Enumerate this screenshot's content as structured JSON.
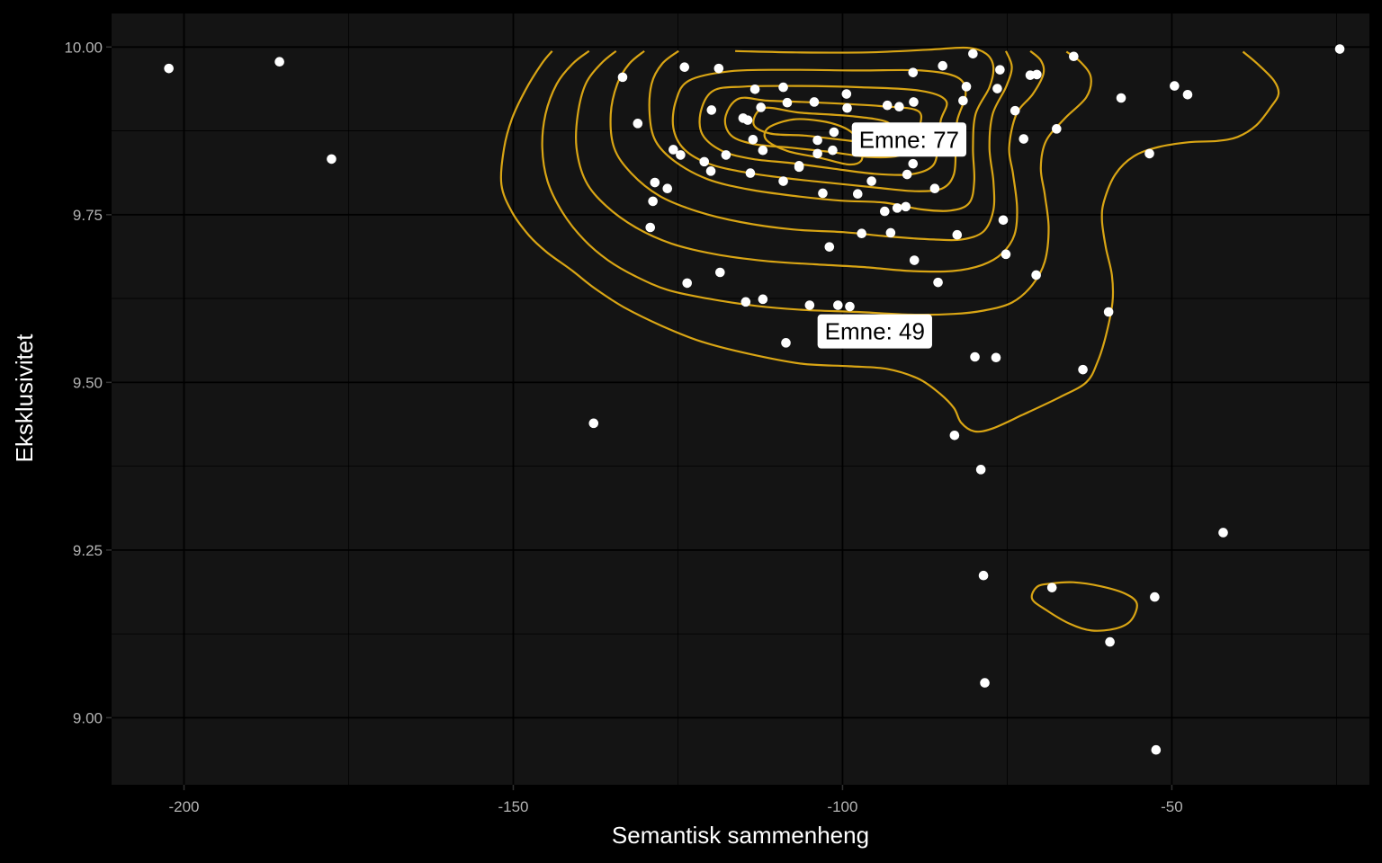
{
  "chart_data": {
    "type": "scatter",
    "xlabel": "Semantisk sammenheng",
    "ylabel": "Eksklusivitet",
    "xlim": [
      -211,
      -20
    ],
    "ylim": [
      8.9,
      10.05
    ],
    "x_ticks": [
      -200,
      -150,
      -100,
      -50
    ],
    "x_tick_labels": [
      "-200",
      "-150",
      "-100",
      "-50"
    ],
    "y_ticks": [
      9.0,
      9.25,
      9.5,
      9.75,
      10.0
    ],
    "y_tick_labels": [
      "9.00",
      "9.25",
      "9.50",
      "9.75",
      "10.00"
    ],
    "grid": true,
    "colors": {
      "background": "#000000",
      "panel": "#141414",
      "grid": "#000000",
      "points": "#ffffff",
      "contours": "#d9a514"
    },
    "points": [
      {
        "x": -202.3,
        "y": 9.968
      },
      {
        "x": -185.5,
        "y": 9.978
      },
      {
        "x": -177.6,
        "y": 9.833
      },
      {
        "x": -137.8,
        "y": 9.439
      },
      {
        "x": -133.4,
        "y": 9.955
      },
      {
        "x": -131.1,
        "y": 9.886
      },
      {
        "x": -129.2,
        "y": 9.731
      },
      {
        "x": -128.8,
        "y": 9.77
      },
      {
        "x": -128.5,
        "y": 9.798
      },
      {
        "x": -126.6,
        "y": 9.789
      },
      {
        "x": -125.7,
        "y": 9.847
      },
      {
        "x": -124.6,
        "y": 9.839
      },
      {
        "x": -124.0,
        "y": 9.97
      },
      {
        "x": -123.6,
        "y": 9.648
      },
      {
        "x": -121.0,
        "y": 9.829
      },
      {
        "x": -120.0,
        "y": 9.815
      },
      {
        "x": -119.9,
        "y": 9.906
      },
      {
        "x": -118.8,
        "y": 9.968
      },
      {
        "x": -118.6,
        "y": 9.664
      },
      {
        "x": -117.7,
        "y": 9.839
      },
      {
        "x": -115.1,
        "y": 9.894
      },
      {
        "x": -114.7,
        "y": 9.62
      },
      {
        "x": -114.4,
        "y": 9.891
      },
      {
        "x": -114.0,
        "y": 9.812
      },
      {
        "x": -113.6,
        "y": 9.862
      },
      {
        "x": -113.3,
        "y": 9.937
      },
      {
        "x": -112.4,
        "y": 9.91
      },
      {
        "x": -112.1,
        "y": 9.624
      },
      {
        "x": -112.1,
        "y": 9.846
      },
      {
        "x": -109.0,
        "y": 9.94
      },
      {
        "x": -109.0,
        "y": 9.8
      },
      {
        "x": -108.6,
        "y": 9.559
      },
      {
        "x": -108.4,
        "y": 9.917
      },
      {
        "x": -106.6,
        "y": 9.823
      },
      {
        "x": -106.6,
        "y": 9.821
      },
      {
        "x": -105.0,
        "y": 9.615
      },
      {
        "x": -104.3,
        "y": 9.918
      },
      {
        "x": -103.8,
        "y": 9.861
      },
      {
        "x": -103.8,
        "y": 9.841
      },
      {
        "x": -103.0,
        "y": 9.782
      },
      {
        "x": -102.0,
        "y": 9.702
      },
      {
        "x": -101.5,
        "y": 9.846
      },
      {
        "x": -101.3,
        "y": 9.873
      },
      {
        "x": -100.7,
        "y": 9.615
      },
      {
        "x": -99.4,
        "y": 9.93
      },
      {
        "x": -99.3,
        "y": 9.909
      },
      {
        "x": -98.9,
        "y": 9.613
      },
      {
        "x": -97.7,
        "y": 9.781
      },
      {
        "x": -97.1,
        "y": 9.722
      },
      {
        "x": -95.6,
        "y": 9.8
      },
      {
        "x": -93.6,
        "y": 9.755
      },
      {
        "x": -93.2,
        "y": 9.913
      },
      {
        "x": -92.7,
        "y": 9.723
      },
      {
        "x": -91.7,
        "y": 9.76
      },
      {
        "x": -91.4,
        "y": 9.911
      },
      {
        "x": -90.4,
        "y": 9.762
      },
      {
        "x": -90.2,
        "y": 9.81
      },
      {
        "x": -89.3,
        "y": 9.826
      },
      {
        "x": -89.3,
        "y": 9.962
      },
      {
        "x": -89.2,
        "y": 9.918
      },
      {
        "x": -89.1,
        "y": 9.682
      },
      {
        "x": -86.0,
        "y": 9.789
      },
      {
        "x": -85.5,
        "y": 9.649
      },
      {
        "x": -84.8,
        "y": 9.972
      },
      {
        "x": -83.0,
        "y": 9.421
      },
      {
        "x": -82.6,
        "y": 9.72
      },
      {
        "x": -81.7,
        "y": 9.92
      },
      {
        "x": -81.2,
        "y": 9.941
      },
      {
        "x": -80.2,
        "y": 9.99
      },
      {
        "x": -79.9,
        "y": 9.538
      },
      {
        "x": -79.0,
        "y": 9.37
      },
      {
        "x": -78.6,
        "y": 9.212
      },
      {
        "x": -78.4,
        "y": 9.052
      },
      {
        "x": -76.7,
        "y": 9.537
      },
      {
        "x": -76.5,
        "y": 9.938
      },
      {
        "x": -76.1,
        "y": 9.966
      },
      {
        "x": -75.6,
        "y": 9.742
      },
      {
        "x": -75.2,
        "y": 9.691
      },
      {
        "x": -73.8,
        "y": 9.905
      },
      {
        "x": -72.5,
        "y": 9.863
      },
      {
        "x": -71.5,
        "y": 9.958
      },
      {
        "x": -70.5,
        "y": 9.959
      },
      {
        "x": -70.6,
        "y": 9.66
      },
      {
        "x": -68.2,
        "y": 9.194
      },
      {
        "x": -67.5,
        "y": 9.878
      },
      {
        "x": -64.9,
        "y": 9.986
      },
      {
        "x": -63.5,
        "y": 9.519
      },
      {
        "x": -59.6,
        "y": 9.605
      },
      {
        "x": -59.4,
        "y": 9.113
      },
      {
        "x": -57.7,
        "y": 9.924
      },
      {
        "x": -53.4,
        "y": 9.841
      },
      {
        "x": -52.6,
        "y": 9.18
      },
      {
        "x": -52.4,
        "y": 8.952
      },
      {
        "x": -49.6,
        "y": 9.942
      },
      {
        "x": -47.6,
        "y": 9.929
      },
      {
        "x": -42.2,
        "y": 9.276
      },
      {
        "x": -24.5,
        "y": 9.997
      }
    ],
    "annotations": [
      {
        "label": "Emne: 77",
        "x": -89.9,
        "y": 9.862
      },
      {
        "label": "Emne: 49",
        "x": -95.1,
        "y": 9.576
      }
    ],
    "contour_levels": [
      [
        [
          -144.1,
          9.994
        ],
        [
          -145.7,
          9.975
        ],
        [
          -148.2,
          9.935
        ],
        [
          -150.2,
          9.893
        ],
        [
          -151.4,
          9.849
        ],
        [
          -151.8,
          9.795
        ],
        [
          -150.2,
          9.754
        ],
        [
          -147.6,
          9.719
        ],
        [
          -144.9,
          9.694
        ],
        [
          -141.1,
          9.667
        ],
        [
          -137.6,
          9.64
        ],
        [
          -133.2,
          9.612
        ],
        [
          -127.4,
          9.584
        ],
        [
          -121.5,
          9.561
        ],
        [
          -114.4,
          9.543
        ],
        [
          -106.3,
          9.528
        ],
        [
          -99.0,
          9.524
        ],
        [
          -93.2,
          9.52
        ],
        [
          -88.4,
          9.505
        ],
        [
          -85.2,
          9.483
        ],
        [
          -83.1,
          9.462
        ],
        [
          -82.0,
          9.44
        ],
        [
          -80.0,
          9.427
        ],
        [
          -77.3,
          9.431
        ],
        [
          -72.8,
          9.451
        ],
        [
          -67.0,
          9.478
        ],
        [
          -63.0,
          9.5
        ],
        [
          -61.3,
          9.53
        ],
        [
          -60.0,
          9.57
        ],
        [
          -59.0,
          9.62
        ],
        [
          -59.1,
          9.66
        ],
        [
          -60.0,
          9.7
        ],
        [
          -60.6,
          9.741
        ],
        [
          -60.3,
          9.77
        ],
        [
          -58.6,
          9.81
        ],
        [
          -55.8,
          9.837
        ],
        [
          -52.0,
          9.851
        ],
        [
          -47.4,
          9.858
        ],
        [
          -43.1,
          9.86
        ],
        [
          -40.0,
          9.866
        ],
        [
          -37.2,
          9.883
        ],
        [
          -35.0,
          9.91
        ],
        [
          -33.8,
          9.93
        ],
        [
          -34.5,
          9.95
        ],
        [
          -37.0,
          9.975
        ],
        [
          -39.2,
          9.993
        ]
      ],
      [
        [
          -138.5,
          9.994
        ],
        [
          -141.0,
          9.975
        ],
        [
          -143.4,
          9.945
        ],
        [
          -145.1,
          9.9
        ],
        [
          -145.6,
          9.85
        ],
        [
          -144.8,
          9.8
        ],
        [
          -142.5,
          9.753
        ],
        [
          -139.3,
          9.713
        ],
        [
          -135.6,
          9.682
        ],
        [
          -131.4,
          9.658
        ],
        [
          -126.6,
          9.638
        ],
        [
          -120.5,
          9.625
        ],
        [
          -113.1,
          9.614
        ],
        [
          -105.8,
          9.608
        ],
        [
          -97.7,
          9.605
        ],
        [
          -89.6,
          9.601
        ],
        [
          -83.1,
          9.602
        ],
        [
          -78.6,
          9.607
        ],
        [
          -74.3,
          9.619
        ],
        [
          -71.2,
          9.645
        ],
        [
          -69.3,
          9.68
        ],
        [
          -68.7,
          9.73
        ],
        [
          -69.3,
          9.78
        ],
        [
          -69.9,
          9.82
        ],
        [
          -69.1,
          9.86
        ],
        [
          -66.2,
          9.894
        ],
        [
          -63.0,
          9.925
        ],
        [
          -62.3,
          9.955
        ],
        [
          -63.9,
          9.978
        ],
        [
          -66.0,
          9.993
        ]
      ],
      [
        [
          -134.4,
          9.994
        ],
        [
          -136.7,
          9.975
        ],
        [
          -139.0,
          9.945
        ],
        [
          -140.2,
          9.9
        ],
        [
          -140.4,
          9.85
        ],
        [
          -139.0,
          9.8
        ],
        [
          -135.9,
          9.763
        ],
        [
          -131.4,
          9.731
        ],
        [
          -126.0,
          9.707
        ],
        [
          -119.3,
          9.691
        ],
        [
          -111.7,
          9.681
        ],
        [
          -104.2,
          9.676
        ],
        [
          -96.9,
          9.672
        ],
        [
          -89.5,
          9.666
        ],
        [
          -83.3,
          9.666
        ],
        [
          -78.8,
          9.675
        ],
        [
          -75.8,
          9.692
        ],
        [
          -73.9,
          9.72
        ],
        [
          -73.5,
          9.76
        ],
        [
          -74.1,
          9.81
        ],
        [
          -74.7,
          9.85
        ],
        [
          -73.6,
          9.9
        ],
        [
          -71.1,
          9.93
        ],
        [
          -69.5,
          9.96
        ],
        [
          -69.9,
          9.98
        ],
        [
          -71.5,
          9.994
        ]
      ],
      [
        [
          -130.1,
          9.994
        ],
        [
          -132.4,
          9.975
        ],
        [
          -134.2,
          9.945
        ],
        [
          -135.2,
          9.9
        ],
        [
          -134.7,
          9.85
        ],
        [
          -132.1,
          9.812
        ],
        [
          -127.8,
          9.778
        ],
        [
          -122.1,
          9.755
        ],
        [
          -115.5,
          9.739
        ],
        [
          -107.6,
          9.728
        ],
        [
          -99.9,
          9.724
        ],
        [
          -92.5,
          9.717
        ],
        [
          -86.1,
          9.713
        ],
        [
          -81.9,
          9.713
        ],
        [
          -78.6,
          9.725
        ],
        [
          -77.1,
          9.757
        ],
        [
          -77.1,
          9.8
        ],
        [
          -77.7,
          9.85
        ],
        [
          -77.2,
          9.9
        ],
        [
          -75.2,
          9.94
        ],
        [
          -74.3,
          9.97
        ],
        [
          -75.2,
          9.994
        ]
      ],
      [
        [
          -124.9,
          9.994
        ],
        [
          -127.4,
          9.975
        ],
        [
          -129.0,
          9.945
        ],
        [
          -129.3,
          9.9
        ],
        [
          -128.4,
          9.86
        ],
        [
          -125.4,
          9.829
        ],
        [
          -120.5,
          9.803
        ],
        [
          -114.4,
          9.788
        ],
        [
          -107.4,
          9.778
        ],
        [
          -100.3,
          9.771
        ],
        [
          -93.7,
          9.768
        ],
        [
          -88.1,
          9.758
        ],
        [
          -83.7,
          9.756
        ],
        [
          -80.8,
          9.767
        ],
        [
          -80.0,
          9.8
        ],
        [
          -80.2,
          9.85
        ],
        [
          -79.8,
          9.9
        ],
        [
          -77.7,
          9.94
        ],
        [
          -77.1,
          9.97
        ],
        [
          -78.2,
          9.99
        ],
        [
          -81.1,
          9.999
        ],
        [
          -87.0,
          9.996
        ],
        [
          -96.3,
          9.992
        ],
        [
          -107.0,
          9.992
        ],
        [
          -116.3,
          9.994
        ]
      ],
      [
        [
          -123.3,
          9.95
        ],
        [
          -125.3,
          9.92
        ],
        [
          -125.7,
          9.88
        ],
        [
          -124.1,
          9.848
        ],
        [
          -120.3,
          9.826
        ],
        [
          -114.7,
          9.813
        ],
        [
          -108.2,
          9.804
        ],
        [
          -101.4,
          9.797
        ],
        [
          -94.5,
          9.79
        ],
        [
          -88.9,
          9.785
        ],
        [
          -84.9,
          9.789
        ],
        [
          -83.1,
          9.81
        ],
        [
          -82.8,
          9.85
        ],
        [
          -82.6,
          9.89
        ],
        [
          -81.3,
          9.93
        ],
        [
          -82.6,
          9.955
        ],
        [
          -88.1,
          9.965
        ],
        [
          -97.6,
          9.965
        ],
        [
          -108.3,
          9.966
        ],
        [
          -117.0,
          9.964
        ]
      ],
      [
        [
          -119.6,
          9.935
        ],
        [
          -121.5,
          9.905
        ],
        [
          -121.3,
          9.87
        ],
        [
          -118.3,
          9.845
        ],
        [
          -113.6,
          9.833
        ],
        [
          -107.8,
          9.827
        ],
        [
          -101.7,
          9.819
        ],
        [
          -95.2,
          9.811
        ],
        [
          -89.8,
          9.81
        ],
        [
          -86.4,
          9.822
        ],
        [
          -85.5,
          9.85
        ],
        [
          -85.1,
          9.89
        ],
        [
          -84.3,
          9.92
        ],
        [
          -88.3,
          9.935
        ],
        [
          -97.1,
          9.94
        ],
        [
          -107.1,
          9.942
        ],
        [
          -114.9,
          9.941
        ]
      ],
      [
        [
          -115.8,
          9.923
        ],
        [
          -117.8,
          9.895
        ],
        [
          -116.9,
          9.868
        ],
        [
          -113.3,
          9.855
        ],
        [
          -108.0,
          9.85
        ],
        [
          -102.2,
          9.844
        ],
        [
          -96.0,
          9.836
        ],
        [
          -91.5,
          9.838
        ],
        [
          -89.0,
          9.855
        ],
        [
          -88.3,
          9.88
        ],
        [
          -88.6,
          9.905
        ],
        [
          -94.3,
          9.912
        ],
        [
          -103.5,
          9.917
        ],
        [
          -111.3,
          9.92
        ]
      ],
      [
        [
          -112.0,
          9.909
        ],
        [
          -113.5,
          9.885
        ],
        [
          -111.0,
          9.871
        ],
        [
          -105.8,
          9.868
        ],
        [
          -100.4,
          9.862
        ],
        [
          -95.7,
          9.858
        ],
        [
          -92.9,
          9.869
        ],
        [
          -93.2,
          9.888
        ],
        [
          -98.7,
          9.897
        ],
        [
          -106.4,
          9.902
        ]
      ],
      [
        [
          -111.2,
          9.88
        ],
        [
          -111.6,
          9.862
        ],
        [
          -108.4,
          9.845
        ],
        [
          -103.5,
          9.835
        ],
        [
          -99.2,
          9.825
        ],
        [
          -97.2,
          9.83
        ],
        [
          -97.1,
          9.85
        ],
        [
          -98.3,
          9.87
        ],
        [
          -100.3,
          9.882
        ],
        [
          -103.5,
          9.89
        ],
        [
          -107.5,
          9.892
        ]
      ],
      [
        [
          -70.5,
          9.195
        ],
        [
          -68.4,
          9.2
        ],
        [
          -65.0,
          9.202
        ],
        [
          -60.8,
          9.196
        ],
        [
          -57.1,
          9.185
        ],
        [
          -55.3,
          9.17
        ],
        [
          -56.2,
          9.145
        ],
        [
          -58.5,
          9.133
        ],
        [
          -62.2,
          9.13
        ],
        [
          -65.5,
          9.14
        ],
        [
          -69.0,
          9.16
        ],
        [
          -71.2,
          9.177
        ]
      ]
    ]
  }
}
